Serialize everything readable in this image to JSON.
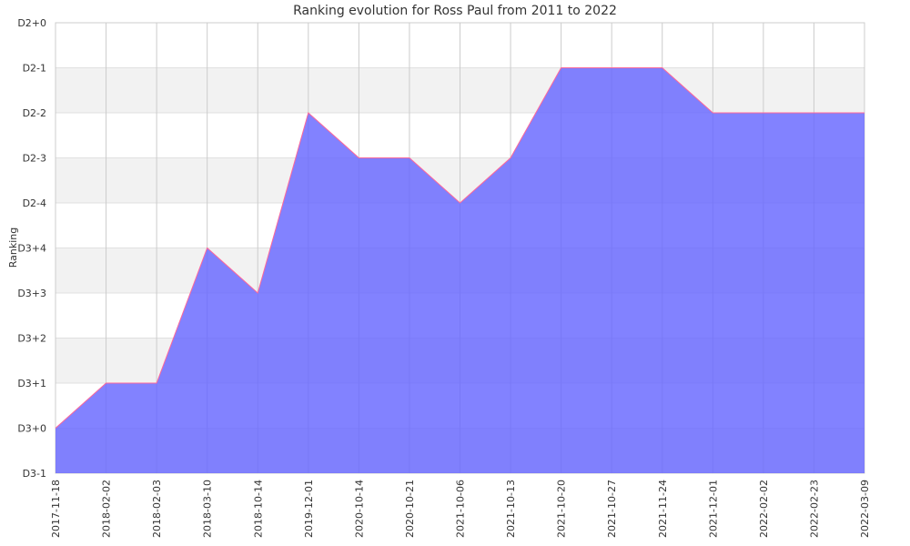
{
  "chart_data": {
    "type": "area",
    "title": "Ranking evolution for Ross Paul from 2011 to 2022",
    "ylabel": "Ranking",
    "xlabel": "",
    "y_ticks": [
      "D3-1",
      "D3+0",
      "D3+1",
      "D3+2",
      "D3+3",
      "D3+4",
      "D2-4",
      "D2-3",
      "D2-2",
      "D2-1",
      "D2+0"
    ],
    "categories": [
      "2017-11-18",
      "2018-02-02",
      "2018-02-03",
      "2018-03-10",
      "2018-10-14",
      "2019-12-01",
      "2020-10-14",
      "2020-10-21",
      "2021-10-06",
      "2021-10-13",
      "2021-10-20",
      "2021-10-27",
      "2021-11-24",
      "2021-12-01",
      "2022-02-02",
      "2022-02-23",
      "2022-03-09"
    ],
    "values": [
      "D3+0",
      "D3+1",
      "D3+1",
      "D3+4",
      "D3+3",
      "D2-2",
      "D2-3",
      "D2-3",
      "D2-4",
      "D2-3",
      "D2-1",
      "D2-1",
      "D2-1",
      "D2-2",
      "D2-2",
      "D2-2",
      "D2-2"
    ],
    "grid": true,
    "colors": {
      "fill": "#6666ff",
      "line": "#ff6699",
      "band": "#f2f2f2",
      "grid": "#cccccc"
    }
  }
}
